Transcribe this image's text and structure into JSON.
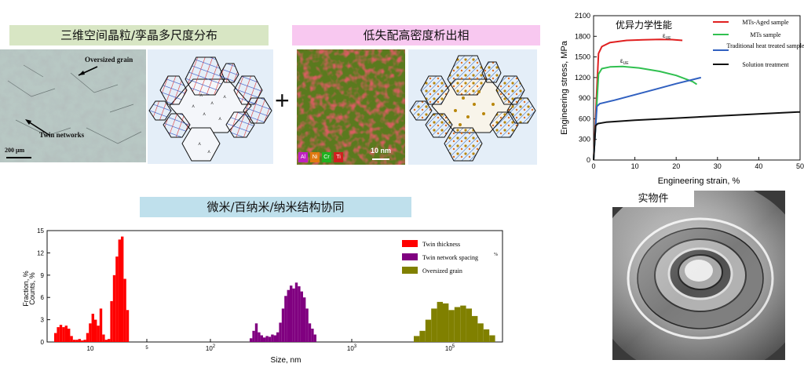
{
  "banners": {
    "grain": "三维空间晶粒/孪晶多尺度分布",
    "precip": "低失配高密度析出相",
    "structure": "微米/百纳米/纳米结构协同",
    "physical": "实物件"
  },
  "micrograph": {
    "label_oversized": "Oversized grain",
    "label_twin": "Twin networks",
    "scale": "200 μm"
  },
  "tem": {
    "scale": "10 nm",
    "elements": [
      "Al",
      "Ni",
      "Cr",
      "Ti"
    ],
    "element_colors": [
      "#c020c0",
      "#e07a10",
      "#20b020",
      "#d02020"
    ]
  },
  "plus_sign": "+",
  "stress_chart": {
    "annotation": "优异力学性能",
    "ylabel": "Engineering stress, MPa",
    "xlabel": "Engineering strain, %",
    "yticks": [
      "0",
      "300",
      "600",
      "900",
      "1200",
      "1500",
      "1800",
      "2100"
    ],
    "xticks": [
      "0",
      "10",
      "20",
      "30",
      "40",
      "50"
    ],
    "eps_label": "ε",
    "eps_sub": "UE",
    "legend": [
      {
        "label": "MTs-Aged sample",
        "color": "#e02020"
      },
      {
        "label": "MTs sample",
        "color": "#30c050"
      },
      {
        "label": "Traditional heat treated sample",
        "color": "#3060c0"
      },
      {
        "label": "Solution treatment",
        "color": "#111111"
      }
    ]
  },
  "chart_data": {
    "type": "line",
    "xlabel": "Engineering strain, %",
    "ylabel": "Engineering stress, MPa",
    "xlim": [
      0,
      50
    ],
    "ylim": [
      0,
      2100
    ],
    "series": [
      {
        "name": "MTs-Aged sample",
        "x": [
          0,
          1.2,
          2,
          4,
          8,
          12,
          16,
          19,
          21.5
        ],
        "y": [
          0,
          1550,
          1650,
          1710,
          1740,
          1750,
          1755,
          1752,
          1740
        ]
      },
      {
        "name": "MTs sample",
        "x": [
          0,
          1.2,
          2,
          4,
          7,
          11,
          16,
          20,
          24,
          25
        ],
        "y": [
          0,
          1250,
          1330,
          1355,
          1360,
          1340,
          1290,
          1230,
          1140,
          1100
        ]
      },
      {
        "name": "Traditional heat treated sample",
        "x": [
          0,
          0.8,
          1.5,
          5,
          10,
          15,
          20,
          26
        ],
        "y": [
          0,
          780,
          820,
          870,
          950,
          1030,
          1110,
          1200
        ]
      },
      {
        "name": "Solution treatment",
        "x": [
          0,
          0.5,
          1,
          3,
          10,
          20,
          30,
          40,
          50
        ],
        "y": [
          0,
          500,
          530,
          550,
          580,
          610,
          640,
          670,
          700
        ]
      }
    ]
  },
  "hist_chart": {
    "ylabel": "Fraction, %",
    "ylabel_overlap": "Counts, %",
    "xlabel": "Size, nm",
    "yticks": [
      "0",
      "3",
      "6",
      "9",
      "12",
      "15"
    ],
    "xticks": [
      {
        "base": "10",
        "exp": ""
      },
      {
        "base": "",
        "exp": "5"
      },
      {
        "base": "10",
        "exp": "2"
      },
      {
        "base": "10",
        "exp": "3"
      },
      {
        "base": "10",
        "exp": "5"
      }
    ],
    "legend": [
      {
        "label": "Twin thickness",
        "color": "#ff0000"
      },
      {
        "label": "Twin network spacing",
        "color": "#800080"
      },
      {
        "label": "Oversized grain",
        "color": "#808000"
      }
    ],
    "legend_stray": "%"
  },
  "hist_data": {
    "type": "bar",
    "ylim": [
      0,
      15
    ],
    "series": [
      {
        "name": "Twin thickness",
        "values": [
          1.2,
          2.0,
          2.3,
          2.0,
          2.2,
          1.8,
          0.8,
          0.3,
          0.3,
          0.4,
          0.2,
          0.3,
          1.2,
          2.5,
          3.8,
          3.0,
          2.2,
          4.5,
          1.0,
          0.3,
          0.4,
          5.5,
          9.0,
          11.5,
          13.8,
          14.2,
          8.5,
          4.3
        ]
      },
      {
        "name": "Twin network spacing",
        "values": [
          0.5,
          1.5,
          2.5,
          1.3,
          0.9,
          0.6,
          0.8,
          0.7,
          1.0,
          0.9,
          1.3,
          2.6,
          4.5,
          6.2,
          7.0,
          7.6,
          7.2,
          8.0,
          7.5,
          6.8,
          6.0,
          4.5,
          2.5,
          1.8,
          1.0
        ]
      },
      {
        "name": "Oversized grain",
        "values": [
          0.8,
          1.5,
          3.0,
          4.5,
          5.4,
          5.2,
          4.3,
          4.7,
          4.9,
          4.5,
          3.5,
          2.5,
          1.7,
          0.9
        ]
      }
    ]
  }
}
